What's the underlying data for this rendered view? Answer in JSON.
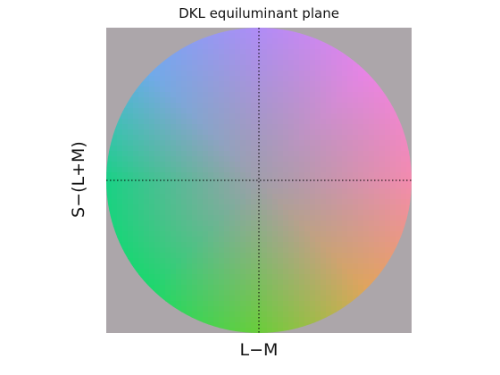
{
  "chart_data": {
    "type": "heatmap",
    "title": "DKL equiluminant plane",
    "xlabel": "L−M",
    "ylabel": "S−(L+M)",
    "xlim": [
      -1,
      1
    ],
    "ylim": [
      -1,
      1
    ],
    "grid": false,
    "crosshair": true,
    "domain_shape": "unit disc",
    "background_color": "#aca6aa",
    "sample_colors": {
      "center": "#a09eab",
      "top": "#b08cf6",
      "bottom": "#6acd3a",
      "left": "#19d185",
      "right": "#f38bae",
      "top_left": "#70aaea",
      "top_right": "#e884e4",
      "bottom_left": "#1dd76d",
      "bottom_right": "#e0a45c"
    },
    "colors": {
      "crosshair": "#000000"
    }
  }
}
